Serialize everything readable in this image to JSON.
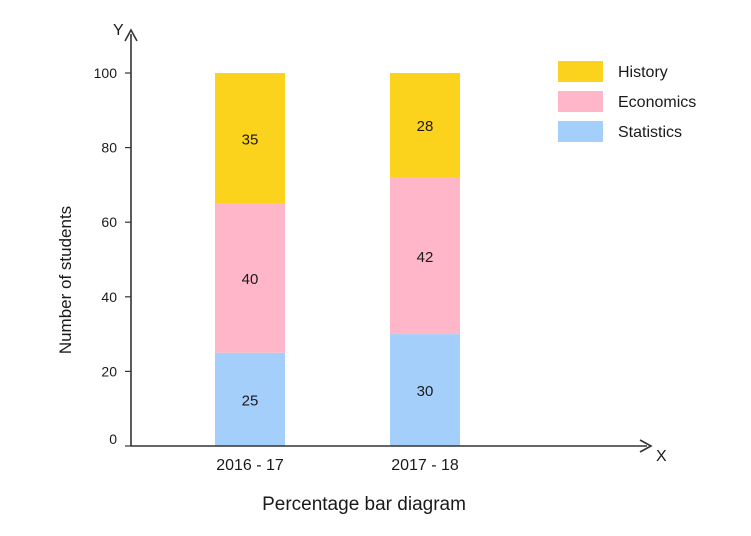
{
  "chart_data": {
    "type": "bar",
    "stacked": true,
    "title": "Percentage bar diagram",
    "xlabel": "",
    "ylabel": "Number of students",
    "x_axis_letter": "X",
    "y_axis_letter": "Y",
    "categories": [
      "2016 - 17",
      "2017 - 18"
    ],
    "series": [
      {
        "name": "Statistics",
        "values": [
          25,
          30
        ],
        "color": "#a4cffa"
      },
      {
        "name": "Economics",
        "values": [
          40,
          42
        ],
        "color": "#feb6c8"
      },
      {
        "name": "History",
        "values": [
          35,
          28
        ],
        "color": "#fcd31c"
      }
    ],
    "yticks": [
      0,
      20,
      40,
      60,
      80,
      100
    ],
    "ylim": [
      0,
      100
    ],
    "grid": false,
    "legend": "top-right"
  }
}
